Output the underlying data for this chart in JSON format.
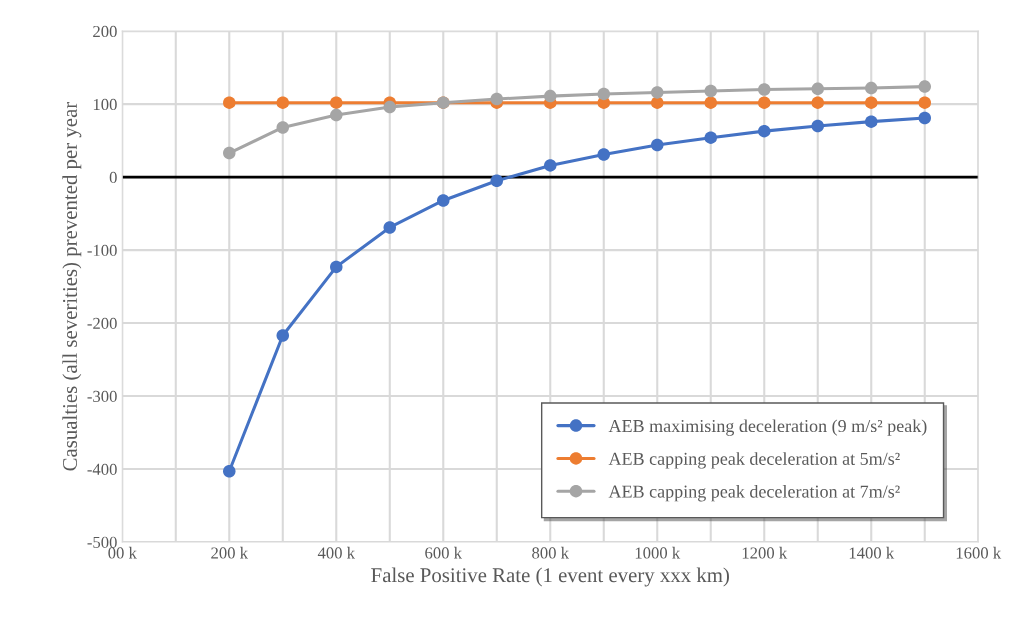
{
  "chart_data": {
    "type": "line",
    "xlabel": "False Positive Rate (1 event every xxx km)",
    "ylabel": "Casualties (all severities) prevented per year",
    "x": [
      200,
      300,
      400,
      500,
      600,
      700,
      800,
      900,
      1000,
      1100,
      1200,
      1300,
      1400,
      1500
    ],
    "series": [
      {
        "name": "AEB maximising deceleration (9 m/s² peak)",
        "color": "#4472c4",
        "values": [
          -403,
          -217,
          -123,
          -69,
          -32,
          -5,
          16,
          31,
          44,
          54,
          63,
          70,
          76,
          81
        ]
      },
      {
        "name": "AEB capping peak deceleration at 5m/s²",
        "color": "#ed7d31",
        "values": [
          102,
          102,
          102,
          102,
          102,
          102,
          102,
          102,
          102,
          102,
          102,
          102,
          102,
          102
        ]
      },
      {
        "name": "AEB capping peak deceleration at 7m/s²",
        "color": "#a5a5a5",
        "values": [
          33,
          68,
          85,
          96,
          102,
          107,
          111,
          114,
          116,
          118,
          120,
          121,
          122,
          124
        ]
      }
    ],
    "xlim": [
      0,
      1600
    ],
    "xticks": [
      {
        "value": 0,
        "label": "00 k"
      },
      {
        "value": 100,
        "label": null
      },
      {
        "value": 200,
        "label": "200 k"
      },
      {
        "value": 300,
        "label": null
      },
      {
        "value": 400,
        "label": "400 k"
      },
      {
        "value": 500,
        "label": null
      },
      {
        "value": 600,
        "label": "600 k"
      },
      {
        "value": 700,
        "label": null
      },
      {
        "value": 800,
        "label": "800 k"
      },
      {
        "value": 900,
        "label": null
      },
      {
        "value": 1000,
        "label": "1000 k"
      },
      {
        "value": 1100,
        "label": null
      },
      {
        "value": 1200,
        "label": "1200 k"
      },
      {
        "value": 1300,
        "label": null
      },
      {
        "value": 1400,
        "label": "1400 k"
      },
      {
        "value": 1500,
        "label": null
      },
      {
        "value": 1600,
        "label": "1600 k"
      }
    ],
    "ylim": [
      -500,
      200
    ],
    "yticks": [
      -500,
      -400,
      -300,
      -200,
      -100,
      0,
      100,
      200
    ],
    "ref_lines": [
      {
        "axis": "y",
        "value": 0,
        "color": "#000000"
      }
    ],
    "grid": true,
    "legend": "bottom right",
    "marker": "circle",
    "line_style": "solid"
  }
}
